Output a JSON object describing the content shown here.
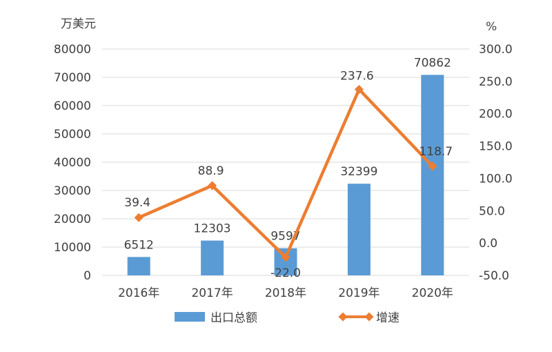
{
  "chart_data": {
    "type": "bar",
    "categories": [
      "2016年",
      "2017年",
      "2018年",
      "2019年",
      "2020年"
    ],
    "series": [
      {
        "name": "出口总额",
        "type": "bar",
        "axis": "left",
        "color": "#5b9bd5",
        "values": [
          6512,
          12303,
          9597,
          32399,
          70862
        ],
        "labels": [
          "6512",
          "12303",
          "9597",
          "32399",
          "70862"
        ]
      },
      {
        "name": "增速",
        "type": "line",
        "axis": "right",
        "color": "#ed7d31",
        "marker": "diamond",
        "values": [
          39.4,
          88.9,
          -22.0,
          237.6,
          118.7
        ],
        "labels": [
          "39.4",
          "88.9",
          "-22.0",
          "237.6",
          "118.7"
        ]
      }
    ],
    "ylabel_left": "万美元",
    "ylabel_right": "%",
    "ylim_left": [
      0,
      80000
    ],
    "yticks_left": [
      "0",
      "10000",
      "20000",
      "30000",
      "40000",
      "50000",
      "60000",
      "70000",
      "80000"
    ],
    "ylim_right": [
      -50,
      300
    ],
    "yticks_right": [
      "-50.0",
      "0.0",
      "50.0",
      "100.0",
      "150.0",
      "200.0",
      "250.0",
      "300.0"
    ],
    "grid": "horizontal",
    "legend": "bottom"
  }
}
